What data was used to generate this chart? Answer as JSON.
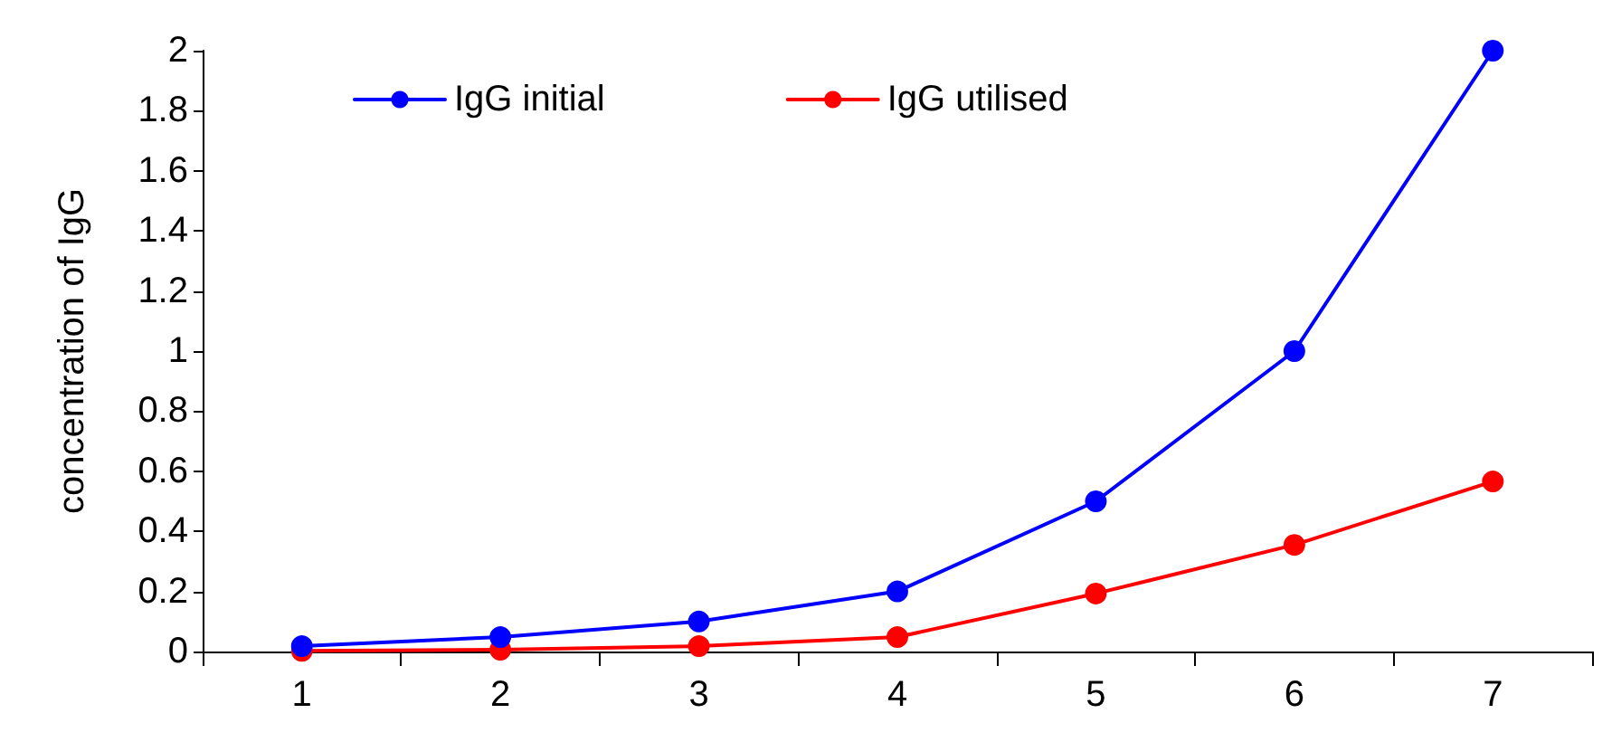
{
  "chart_data": {
    "type": "line",
    "ylabel": "concentration of IgG",
    "categories": [
      "1",
      "2",
      "3",
      "4",
      "5",
      "6",
      "7"
    ],
    "series": [
      {
        "name": "IgG initial",
        "color": "#0000ff",
        "values": [
          0.018,
          0.048,
          0.1,
          0.2,
          0.5,
          1,
          2
        ]
      },
      {
        "name": "IgG utilised",
        "color": "#ff0000",
        "values": [
          0.002,
          0.006,
          0.018,
          0.048,
          0.193,
          0.355,
          0.566
        ]
      }
    ],
    "ylim": [
      0,
      2
    ],
    "yticks": [
      0,
      0.2,
      0.4,
      0.6,
      0.8,
      1,
      1.2,
      1.4,
      1.6,
      1.8,
      2
    ],
    "grid": false,
    "legend": "top",
    "marker": "circle",
    "line_style": "solid"
  }
}
